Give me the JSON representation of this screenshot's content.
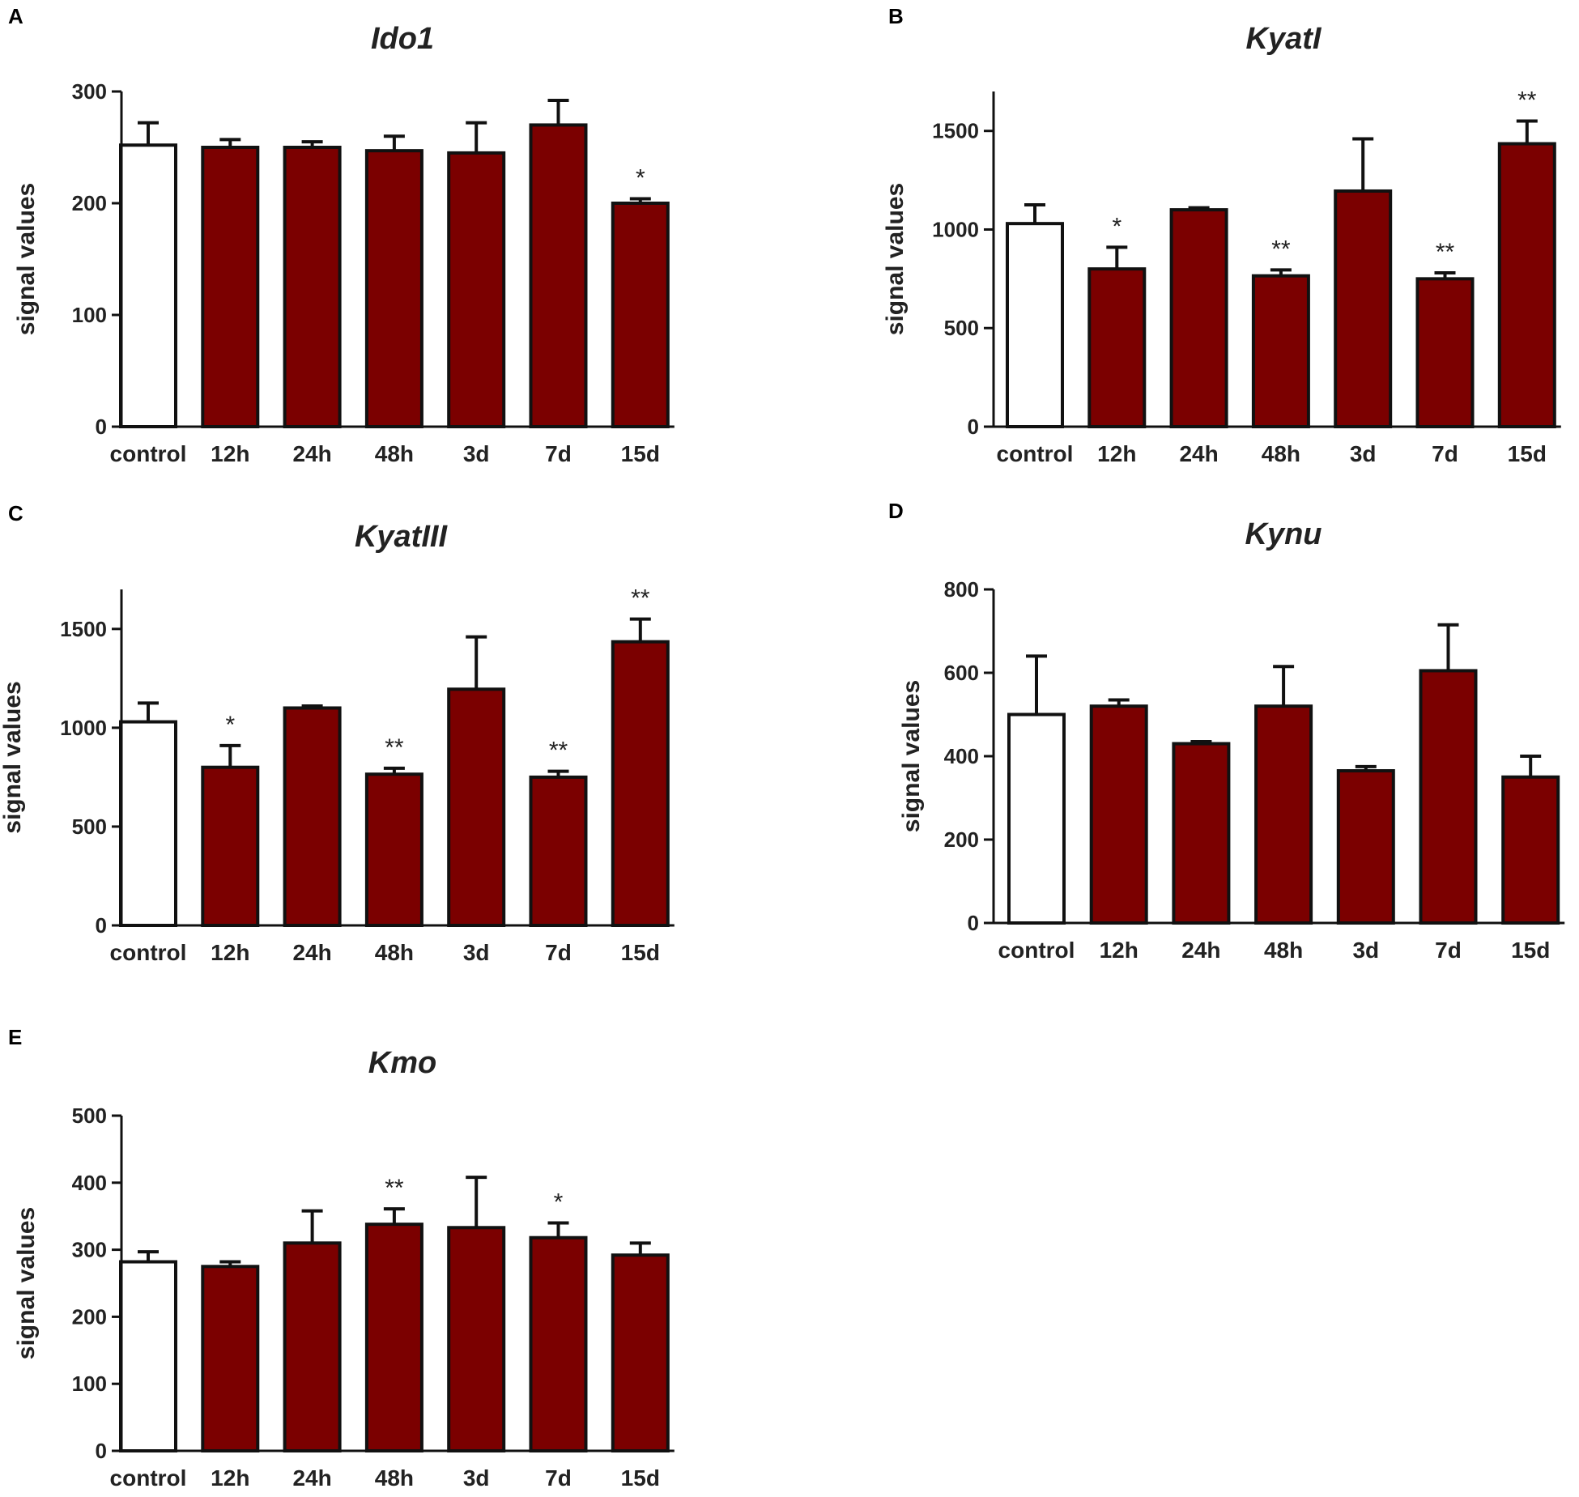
{
  "colors": {
    "bar_fill": "#7b0000",
    "control_fill": "#ffffff",
    "stroke": "#111111"
  },
  "chart_data": [
    {
      "panel": "A",
      "title": "Ido1",
      "type": "bar",
      "ylabel": "signal values",
      "ylim": [
        0,
        300
      ],
      "yticks": [
        0,
        100,
        200,
        300
      ],
      "categories": [
        "control",
        "12h",
        "24h",
        "48h",
        "3d",
        "7d",
        "15d"
      ],
      "values": [
        252,
        250,
        250,
        247,
        245,
        270,
        200
      ],
      "errors": [
        20,
        7,
        5,
        13,
        27,
        22,
        4
      ],
      "significance": [
        "",
        "",
        "",
        "",
        "",
        "",
        "*"
      ]
    },
    {
      "panel": "B",
      "title": "KyatI",
      "type": "bar",
      "ylabel": "signal values",
      "ylim": [
        0,
        1700
      ],
      "yticks": [
        0,
        500,
        1000,
        1500
      ],
      "categories": [
        "control",
        "12h",
        "24h",
        "48h",
        "3d",
        "7d",
        "15d"
      ],
      "values": [
        1030,
        800,
        1100,
        765,
        1195,
        750,
        1435
      ],
      "errors": [
        95,
        110,
        10,
        30,
        265,
        30,
        115
      ],
      "significance": [
        "",
        "*",
        "",
        "**",
        "",
        "**",
        "**"
      ]
    },
    {
      "panel": "C",
      "title": "KyatIII",
      "type": "bar",
      "ylabel": "signal values",
      "ylim": [
        0,
        1700
      ],
      "yticks": [
        0,
        500,
        1000,
        1500
      ],
      "categories": [
        "control",
        "12h",
        "24h",
        "48h",
        "3d",
        "7d",
        "15d"
      ],
      "values": [
        1030,
        800,
        1100,
        765,
        1195,
        750,
        1435
      ],
      "errors": [
        95,
        110,
        10,
        30,
        265,
        30,
        115
      ],
      "significance": [
        "",
        "*",
        "",
        "**",
        "",
        "**",
        "**"
      ]
    },
    {
      "panel": "D",
      "title": "Kynu",
      "type": "bar",
      "ylabel": "signal values",
      "ylim": [
        0,
        800
      ],
      "yticks": [
        0,
        200,
        400,
        600,
        800
      ],
      "categories": [
        "control",
        "12h",
        "24h",
        "48h",
        "3d",
        "7d",
        "15d"
      ],
      "values": [
        500,
        520,
        430,
        520,
        365,
        605,
        350
      ],
      "errors": [
        140,
        15,
        5,
        95,
        10,
        110,
        50
      ],
      "significance": [
        "",
        "",
        "",
        "",
        "",
        "",
        ""
      ]
    },
    {
      "panel": "E",
      "title": "Kmo",
      "type": "bar",
      "ylabel": "signal values",
      "ylim": [
        0,
        500
      ],
      "yticks": [
        0,
        100,
        200,
        300,
        400,
        500
      ],
      "categories": [
        "control",
        "12h",
        "24h",
        "48h",
        "3d",
        "7d",
        "15d"
      ],
      "values": [
        282,
        275,
        310,
        338,
        333,
        318,
        292
      ],
      "errors": [
        15,
        7,
        48,
        23,
        75,
        22,
        18
      ],
      "significance": [
        "",
        "",
        "",
        "**",
        "",
        "*",
        ""
      ]
    }
  ]
}
